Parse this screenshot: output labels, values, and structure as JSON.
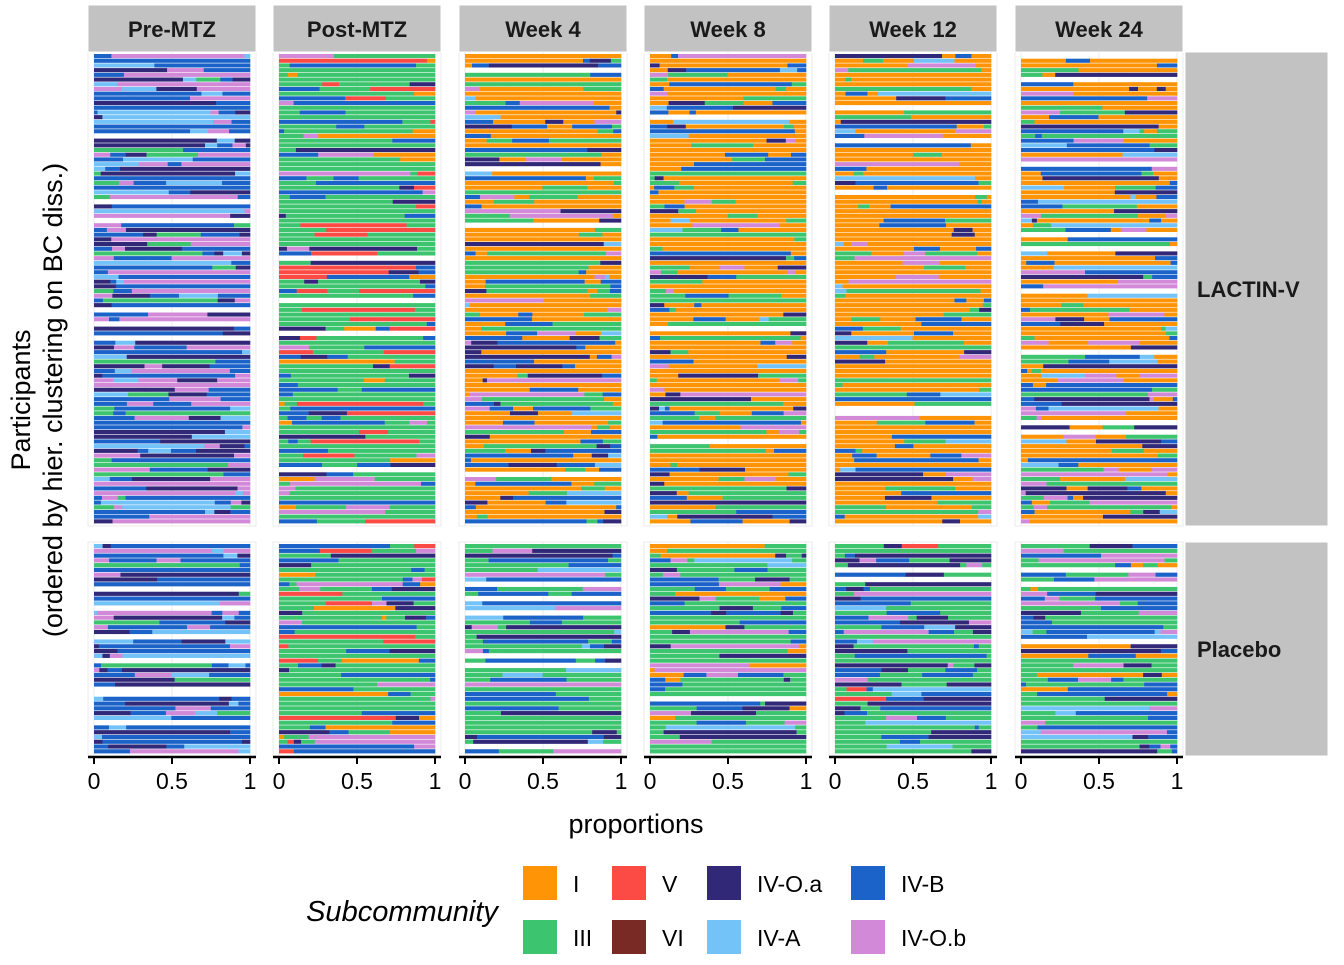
{
  "chart_data": {
    "type": "bar",
    "orientation": "horizontal-stacked-proportions",
    "facet_columns": [
      "Pre-MTZ",
      "Post-MTZ",
      "Week 4",
      "Week 8",
      "Week 12",
      "Week 24"
    ],
    "facet_rows": [
      "LACTIN-V",
      "Placebo"
    ],
    "xlabel": "proportions",
    "ylabel_line1": "Participants",
    "ylabel_line2": "(ordered by hier. clustering on BC diss.)",
    "x_ticks": [
      "0",
      "0.5",
      "1"
    ],
    "xlim": [
      0,
      1
    ],
    "legend": {
      "title": "Subcommunity",
      "position": "bottom",
      "items": [
        {
          "label": "I",
          "color": "#FF9406"
        },
        {
          "label": "III",
          "color": "#3DC46E"
        },
        {
          "label": "V",
          "color": "#FC4A45"
        },
        {
          "label": "VI",
          "color": "#7A2A24"
        },
        {
          "label": "IV-O.a",
          "color": "#312878"
        },
        {
          "label": "IV-A",
          "color": "#73C3F8"
        },
        {
          "label": "IV-B",
          "color": "#1B63C8"
        },
        {
          "label": "IV-O.b",
          "color": "#D28AD8"
        }
      ]
    },
    "participants": {
      "LACTIN-V": 100,
      "Placebo": 44
    },
    "dominant_profile_approx": {
      "LACTIN-V": {
        "Pre-MTZ": {
          "IV-B": 0.4,
          "IV-O.a": 0.22,
          "IV-O.b": 0.18,
          "IV-A": 0.12,
          "III": 0.08
        },
        "Post-MTZ": {
          "III": 0.55,
          "IV-B": 0.18,
          "V": 0.1,
          "IV-O.a": 0.07,
          "IV-O.b": 0.05,
          "I": 0.05
        },
        "Week 4": {
          "I": 0.4,
          "III": 0.2,
          "IV-B": 0.18,
          "IV-O.a": 0.1,
          "IV-O.b": 0.07,
          "IV-A": 0.05
        },
        "Week 8": {
          "I": 0.45,
          "III": 0.22,
          "IV-B": 0.15,
          "IV-O.a": 0.08,
          "IV-O.b": 0.06,
          "IV-A": 0.04
        },
        "Week 12": {
          "I": 0.55,
          "III": 0.17,
          "IV-B": 0.12,
          "IV-O.a": 0.07,
          "IV-O.b": 0.05,
          "IV-A": 0.04
        },
        "Week 24": {
          "I": 0.38,
          "IV-B": 0.2,
          "III": 0.15,
          "IV-O.a": 0.11,
          "IV-O.b": 0.1,
          "IV-A": 0.06
        }
      },
      "Placebo": {
        "Pre-MTZ": {
          "IV-B": 0.4,
          "IV-O.a": 0.22,
          "IV-O.b": 0.2,
          "IV-A": 0.1,
          "III": 0.08
        },
        "Post-MTZ": {
          "III": 0.5,
          "IV-B": 0.2,
          "IV-O.a": 0.1,
          "V": 0.08,
          "IV-O.b": 0.07,
          "I": 0.05
        },
        "Week 4": {
          "III": 0.5,
          "IV-B": 0.22,
          "IV-O.a": 0.13,
          "IV-O.b": 0.08,
          "IV-A": 0.07
        },
        "Week 8": {
          "III": 0.45,
          "IV-B": 0.2,
          "I": 0.12,
          "IV-O.a": 0.12,
          "IV-O.b": 0.08,
          "IV-A": 0.03
        },
        "Week 12": {
          "III": 0.45,
          "IV-B": 0.22,
          "IV-O.a": 0.15,
          "IV-O.b": 0.1,
          "V": 0.04,
          "IV-A": 0.04
        },
        "Week 24": {
          "III": 0.38,
          "IV-B": 0.22,
          "I": 0.12,
          "IV-O.a": 0.14,
          "IV-O.b": 0.1,
          "IV-A": 0.04
        }
      }
    }
  }
}
